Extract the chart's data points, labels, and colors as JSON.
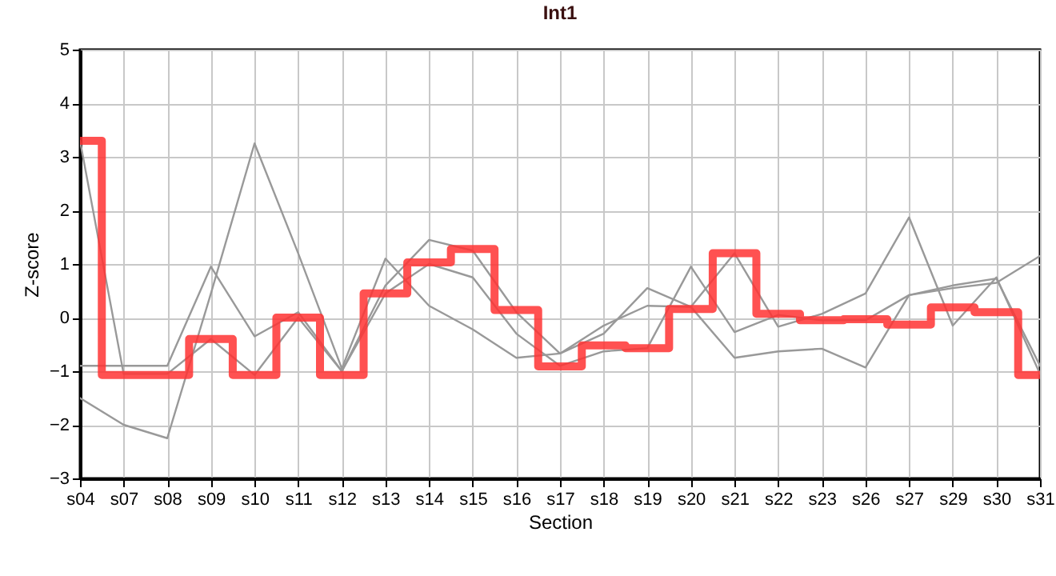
{
  "chart_data": {
    "type": "line",
    "title": "Int1",
    "xlabel": "Section",
    "ylabel": "Z-score",
    "categories": [
      "s04",
      "s07",
      "s08",
      "s09",
      "s10",
      "s11",
      "s12",
      "s13",
      "s14",
      "s15",
      "s16",
      "s17",
      "s18",
      "s19",
      "s20",
      "s21",
      "s22",
      "s23",
      "s26",
      "s27",
      "s29",
      "s30",
      "s31"
    ],
    "ylim": [
      -3,
      5
    ],
    "yticks": [
      -3,
      -2,
      -1,
      0,
      1,
      2,
      3,
      4,
      5
    ],
    "grid": true,
    "series": [
      {
        "color": "#999999",
        "values": [
          3.3,
          -1.05,
          -1.05,
          -0.4,
          -1.07,
          0.0,
          -1.0,
          0.6,
          1.45,
          1.25,
          0.1,
          -0.67,
          -0.15,
          0.22,
          0.2,
          1.2,
          -0.17,
          0.07,
          0.45,
          1.87,
          -0.15,
          0.75,
          -1.05
        ]
      },
      {
        "color": "#999999",
        "values": [
          -0.9,
          -0.9,
          -0.9,
          0.95,
          -0.35,
          0.1,
          -1.0,
          0.45,
          1.0,
          0.75,
          -0.3,
          -0.9,
          -0.63,
          -0.57,
          0.95,
          -0.27,
          0.05,
          -0.05,
          -0.05,
          0.42,
          0.6,
          0.73,
          -0.9
        ]
      },
      {
        "color": "#999999",
        "values": [
          -1.5,
          -2.0,
          -2.25,
          0.45,
          3.25,
          1.2,
          -0.95,
          1.1,
          0.22,
          -0.22,
          -0.75,
          -0.67,
          -0.3,
          0.55,
          0.2,
          -0.75,
          -0.63,
          -0.58,
          -0.93,
          0.42,
          0.55,
          0.65,
          1.15
        ]
      },
      {
        "type": "step",
        "color": "#ff3333",
        "values": [
          3.3,
          -1.07,
          -1.07,
          -0.4,
          -1.07,
          0,
          -1.07,
          0.45,
          1.03,
          1.28,
          0.14,
          -0.91,
          -0.52,
          -0.57,
          0.16,
          1.2,
          0.07,
          -0.05,
          -0.03,
          -0.13,
          0.19,
          0.1,
          -1.07
        ]
      }
    ]
  }
}
